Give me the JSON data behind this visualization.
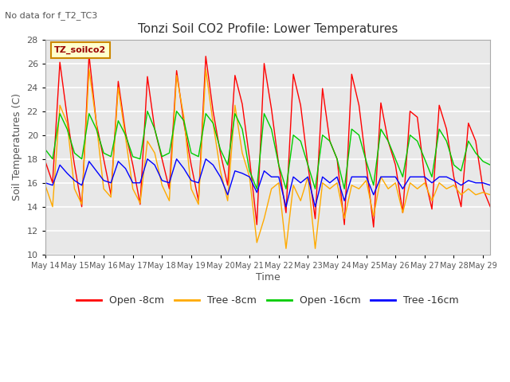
{
  "title": "Tonzi Soil CO2 Profile: Lower Temperatures",
  "subtitle": "No data for f_T2_TC3",
  "xlabel": "Time",
  "ylabel": "Soil Temperatures (C)",
  "ylim": [
    10,
    28
  ],
  "yticks": [
    10,
    12,
    14,
    16,
    18,
    20,
    22,
    24,
    26,
    28
  ],
  "x_labels": [
    "May 14",
    "May 15",
    "May 16",
    "May 17",
    "May 18",
    "May 19",
    "May 20",
    "May 21",
    "May 22",
    "May 23",
    "May 24",
    "May 25",
    "May 26",
    "May 27",
    "May 28",
    "May 29"
  ],
  "legend_label": "TZ_soilco2",
  "legend_entries": [
    "Open -8cm",
    "Tree -8cm",
    "Open -16cm",
    "Tree -16cm"
  ],
  "legend_colors": [
    "#ff0000",
    "#ffaa00",
    "#00cc00",
    "#0000ff"
  ],
  "bg_color": "#e8e8e8",
  "grid_color": "#ffffff",
  "open8_color": "#ff0000",
  "tree8_color": "#ffaa00",
  "open16_color": "#00cc00",
  "tree16_color": "#0000ff",
  "open8": [
    17.8,
    16.0,
    26.1,
    21.5,
    17.5,
    14.0,
    26.7,
    21.0,
    18.0,
    15.0,
    24.5,
    20.2,
    17.5,
    14.2,
    24.9,
    20.5,
    18.0,
    15.5,
    25.4,
    21.0,
    17.5,
    14.5,
    26.6,
    22.0,
    18.5,
    15.8,
    25.0,
    22.6,
    18.0,
    12.5,
    26.0,
    22.2,
    17.5,
    13.5,
    25.1,
    22.5,
    17.5,
    13.0,
    23.9,
    19.5,
    18.0,
    12.5,
    25.1,
    22.5,
    17.5,
    12.3,
    22.7,
    19.5,
    17.5,
    13.5,
    22.0,
    21.5,
    16.5,
    13.8,
    22.5,
    20.5,
    16.5,
    14.0,
    21.0,
    19.5,
    15.5,
    14.0
  ],
  "tree8": [
    15.8,
    14.0,
    22.5,
    21.0,
    15.5,
    14.2,
    25.5,
    21.0,
    15.5,
    14.8,
    24.0,
    19.8,
    15.5,
    14.3,
    19.5,
    18.5,
    15.8,
    14.5,
    25.0,
    21.5,
    15.5,
    14.2,
    25.5,
    21.0,
    17.0,
    14.5,
    22.5,
    18.5,
    16.5,
    11.0,
    13.0,
    15.5,
    16.0,
    10.5,
    15.8,
    14.5,
    16.5,
    10.5,
    16.0,
    15.5,
    16.0,
    13.0,
    15.8,
    15.5,
    16.2,
    13.2,
    16.5,
    15.5,
    16.0,
    13.5,
    16.0,
    15.5,
    16.0,
    14.5,
    16.0,
    15.5,
    15.8,
    15.0,
    15.5,
    15.0,
    15.2,
    15.0
  ],
  "open16": [
    18.8,
    18.0,
    21.8,
    20.5,
    18.5,
    18.0,
    21.8,
    20.5,
    18.5,
    18.2,
    21.2,
    20.0,
    18.2,
    18.0,
    22.0,
    20.5,
    18.2,
    18.5,
    22.0,
    21.2,
    18.5,
    18.2,
    21.8,
    21.0,
    18.8,
    17.5,
    21.8,
    20.5,
    17.0,
    15.5,
    21.8,
    20.5,
    17.5,
    15.5,
    20.0,
    19.5,
    17.5,
    15.5,
    20.0,
    19.5,
    18.0,
    15.5,
    20.5,
    20.0,
    17.8,
    15.8,
    20.5,
    19.5,
    18.0,
    16.5,
    20.0,
    19.5,
    18.0,
    16.5,
    20.5,
    19.5,
    17.5,
    17.0,
    19.5,
    18.5,
    17.8,
    17.5
  ],
  "tree16": [
    16.0,
    15.8,
    17.5,
    16.8,
    16.2,
    15.8,
    17.8,
    17.0,
    16.2,
    16.0,
    17.8,
    17.2,
    16.0,
    16.0,
    18.0,
    17.5,
    16.2,
    16.0,
    18.0,
    17.2,
    16.2,
    16.0,
    18.0,
    17.5,
    16.5,
    15.0,
    17.0,
    16.8,
    16.5,
    15.2,
    17.0,
    16.5,
    16.5,
    14.0,
    16.5,
    16.0,
    16.5,
    14.0,
    16.5,
    16.0,
    16.5,
    14.5,
    16.5,
    16.5,
    16.5,
    15.0,
    16.5,
    16.5,
    16.5,
    15.5,
    16.5,
    16.5,
    16.5,
    16.0,
    16.5,
    16.5,
    16.2,
    15.8,
    16.2,
    16.0,
    16.0,
    15.8
  ]
}
